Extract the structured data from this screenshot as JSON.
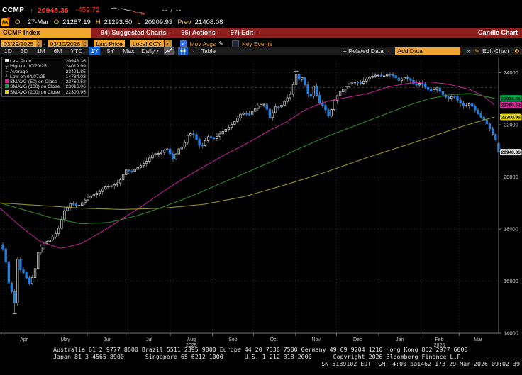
{
  "quote": {
    "ticker": "CCMP",
    "tick_arrow": "↑",
    "last": "20948.36",
    "change": "-459.72",
    "range_placeholder": "--  /  --",
    "on_label": "On",
    "date": "27-Mar",
    "open_label": "O",
    "open": "21287.19",
    "high_label": "H",
    "high": "21293.50",
    "low_label": "L",
    "low": "20909.93",
    "prev_label": "Prev",
    "prev": "21408.08"
  },
  "menubar": {
    "security": "CCMP Index",
    "items": [
      "94) Suggested Charts",
      "96) Actions",
      "97) Edit"
    ],
    "separator": "·",
    "right_label": "Candle Chart"
  },
  "controls": {
    "date_from": "03/29/2025",
    "date_to": "03/30/2026",
    "price_type": "Last Price",
    "currency": "Local CCY",
    "dropdown_caret": "▾",
    "mov_avgs_label": "Mov Avgs",
    "key_events_label": "Key Events",
    "pencil_icon": "✎"
  },
  "toolbar": {
    "periods": [
      "1D",
      "3D",
      "1M",
      "6M",
      "YTD",
      "1Y",
      "5Y",
      "Max"
    ],
    "selected_period": "1Y",
    "frequency": "Daily",
    "caret": "▼",
    "table_label": "Table",
    "related_data": "+ Related Data",
    "dot": "·",
    "add_data_placeholder": "Add Data",
    "collapse": "«",
    "edit_chart": "Edit Chart",
    "gear": "⚙",
    "pencil": "✎"
  },
  "legend": {
    "rows": [
      {
        "marker": "square",
        "color": "#e8e8e8",
        "label": "Last Price",
        "value": "20948.36"
      },
      {
        "marker": "┬",
        "color": "#bbbbbb",
        "label": "High on 10/29/25",
        "value": "24019.99"
      },
      {
        "marker": "╌",
        "color": "#bbbbbb",
        "label": "Average",
        "value": "23421.85"
      },
      {
        "marker": "┴",
        "color": "#bbbbbb",
        "label": "Low on 04/07/25",
        "value": "14784.03"
      },
      {
        "marker": "square",
        "color": "#e0219e",
        "label": "SMAVG (50)  on Close",
        "value": "22760.52"
      },
      {
        "marker": "square",
        "color": "#00a64f",
        "label": "SMAVG (100)  on Close",
        "value": "23016.06"
      },
      {
        "marker": "square",
        "color": "#e3d400",
        "label": "SMAVG (200)  on Close",
        "value": "22300.95"
      }
    ]
  },
  "chart_data": {
    "type": "candlestick",
    "title": "CCMP Index 1Y daily candle chart",
    "ylim": [
      14000,
      24400
    ],
    "yticks": [
      14000,
      16000,
      18000,
      20000,
      22000,
      24000
    ],
    "x_months": [
      "Apr",
      "May",
      "Jun",
      "Jul",
      "Aug",
      "Sep",
      "Oct",
      "Nov",
      "Dec",
      "Jan",
      "Feb",
      "Mar"
    ],
    "month_start_days": [
      3,
      33,
      64,
      94,
      125,
      156,
      186,
      217,
      247,
      278,
      309,
      337
    ],
    "month_mid_days": [
      17.5,
      48,
      79,
      109.5,
      140.5,
      171,
      201,
      232,
      262.5,
      293.5,
      322.5,
      351
    ],
    "year_labels": [
      {
        "text": "2025",
        "month_index": 4
      },
      {
        "text": "2026",
        "month_index": 10
      }
    ],
    "total_days": 366,
    "last_day": 363,
    "candle_count": 170,
    "close_anchors": [
      [
        0,
        17240
      ],
      [
        3,
        16550
      ],
      [
        5,
        15590
      ],
      [
        7,
        15600
      ],
      [
        9,
        15050
      ],
      [
        11,
        17100
      ],
      [
        13,
        16390
      ],
      [
        16,
        16290
      ],
      [
        19,
        15870
      ],
      [
        23,
        16300
      ],
      [
        26,
        17170
      ],
      [
        30,
        17450
      ],
      [
        35,
        17600
      ],
      [
        40,
        17900
      ],
      [
        45,
        18700
      ],
      [
        50,
        19010
      ],
      [
        55,
        18870
      ],
      [
        60,
        19110
      ],
      [
        64,
        19250
      ],
      [
        70,
        19400
      ],
      [
        75,
        19620
      ],
      [
        80,
        19660
      ],
      [
        85,
        19800
      ],
      [
        90,
        20270
      ],
      [
        94,
        20200
      ],
      [
        100,
        20400
      ],
      [
        105,
        20580
      ],
      [
        110,
        20880
      ],
      [
        115,
        20900
      ],
      [
        120,
        21100
      ],
      [
        125,
        20650
      ],
      [
        128,
        21050
      ],
      [
        132,
        21170
      ],
      [
        136,
        21680
      ],
      [
        140,
        21620
      ],
      [
        145,
        21100
      ],
      [
        150,
        21550
      ],
      [
        155,
        21460
      ],
      [
        160,
        21700
      ],
      [
        165,
        21890
      ],
      [
        170,
        22140
      ],
      [
        175,
        22470
      ],
      [
        180,
        22380
      ],
      [
        184,
        22590
      ],
      [
        188,
        22780
      ],
      [
        192,
        22790
      ],
      [
        196,
        22200
      ],
      [
        199,
        22690
      ],
      [
        203,
        22680
      ],
      [
        207,
        22950
      ],
      [
        211,
        23200
      ],
      [
        214,
        23830
      ],
      [
        215,
        23958
      ],
      [
        217,
        23730
      ],
      [
        220,
        23840
      ],
      [
        222,
        23350
      ],
      [
        225,
        23000
      ],
      [
        228,
        23530
      ],
      [
        231,
        22870
      ],
      [
        235,
        22710
      ],
      [
        239,
        22270
      ],
      [
        242,
        22870
      ],
      [
        246,
        23210
      ],
      [
        250,
        23410
      ],
      [
        254,
        23580
      ],
      [
        258,
        23650
      ],
      [
        262,
        23590
      ],
      [
        266,
        23750
      ],
      [
        270,
        23860
      ],
      [
        274,
        23920
      ],
      [
        278,
        23850
      ],
      [
        282,
        23950
      ],
      [
        286,
        23880
      ],
      [
        290,
        23700
      ],
      [
        294,
        23820
      ],
      [
        298,
        23740
      ],
      [
        302,
        23500
      ],
      [
        306,
        23620
      ],
      [
        310,
        23400
      ],
      [
        314,
        23280
      ],
      [
        318,
        23420
      ],
      [
        322,
        23150
      ],
      [
        326,
        23000
      ],
      [
        330,
        23120
      ],
      [
        334,
        22880
      ],
      [
        338,
        22700
      ],
      [
        342,
        22820
      ],
      [
        346,
        22550
      ],
      [
        350,
        22300
      ],
      [
        353,
        22150
      ],
      [
        356,
        21900
      ],
      [
        359,
        21600
      ],
      [
        361,
        21408
      ],
      [
        362,
        21408
      ],
      [
        363,
        20948.36
      ]
    ],
    "special_low": {
      "day": 9,
      "value": 14784.03
    },
    "special_high": {
      "day": 215,
      "value": 24019.99
    },
    "last_candle": {
      "open": 21287.19,
      "high": 21293.5,
      "low": 20909.93,
      "close": 20948.36
    },
    "average_line": {
      "value": 23421.85,
      "color": "#8a8a8a"
    },
    "mov_avgs": [
      {
        "name": "SMAVG (50) on Close",
        "color": "#c42296",
        "anchors": [
          [
            0,
            18800
          ],
          [
            15,
            18100
          ],
          [
            30,
            17500
          ],
          [
            45,
            17250
          ],
          [
            60,
            17450
          ],
          [
            75,
            17900
          ],
          [
            90,
            18400
          ],
          [
            105,
            18900
          ],
          [
            120,
            19450
          ],
          [
            135,
            19950
          ],
          [
            150,
            20400
          ],
          [
            165,
            20850
          ],
          [
            180,
            21250
          ],
          [
            195,
            21700
          ],
          [
            210,
            22100
          ],
          [
            225,
            22600
          ],
          [
            240,
            22900
          ],
          [
            255,
            23050
          ],
          [
            270,
            23200
          ],
          [
            285,
            23450
          ],
          [
            300,
            23600
          ],
          [
            315,
            23650
          ],
          [
            330,
            23550
          ],
          [
            345,
            23350
          ],
          [
            355,
            23100
          ],
          [
            363,
            22760.52
          ]
        ]
      },
      {
        "name": "SMAVG (100) on Close",
        "color": "#2e8b2e",
        "anchors": [
          [
            0,
            19000
          ],
          [
            20,
            18700
          ],
          [
            40,
            18400
          ],
          [
            60,
            18200
          ],
          [
            80,
            18250
          ],
          [
            100,
            18500
          ],
          [
            120,
            18850
          ],
          [
            140,
            19250
          ],
          [
            160,
            19700
          ],
          [
            180,
            20150
          ],
          [
            200,
            20600
          ],
          [
            220,
            21100
          ],
          [
            240,
            21550
          ],
          [
            260,
            21950
          ],
          [
            280,
            22350
          ],
          [
            300,
            22750
          ],
          [
            315,
            23000
          ],
          [
            330,
            23150
          ],
          [
            345,
            23200
          ],
          [
            363,
            23016.06
          ]
        ]
      },
      {
        "name": "SMAVG (200) on Close",
        "color": "#99992b",
        "anchors": [
          [
            0,
            19000
          ],
          [
            30,
            18900
          ],
          [
            60,
            18800
          ],
          [
            90,
            18750
          ],
          [
            120,
            18800
          ],
          [
            150,
            18950
          ],
          [
            180,
            19250
          ],
          [
            210,
            19700
          ],
          [
            240,
            20200
          ],
          [
            270,
            20750
          ],
          [
            300,
            21250
          ],
          [
            320,
            21600
          ],
          [
            340,
            21950
          ],
          [
            363,
            22300.95
          ]
        ]
      }
    ],
    "axis_chips": [
      {
        "value": 23016.06,
        "text": "23016.06",
        "bg": "#00a64f",
        "fg": "#000000"
      },
      {
        "value": 22760.52,
        "text": "22760.52",
        "bg": "#e0219e",
        "fg": "#000000"
      },
      {
        "value": 22300.95,
        "text": "22300.95",
        "bg": "#e3d400",
        "fg": "#000000"
      },
      {
        "value": 20948.36,
        "text": "20948.36",
        "bg": "#e8e8e8",
        "fg": "#000000"
      }
    ],
    "colors": {
      "up_stroke": "#c9c9c9",
      "down_fill": "#1f7fe8",
      "wick": "#9a9a9a",
      "grid": "#2e2e2e",
      "axis": "#777777",
      "tick_label": "#d5d5d5",
      "month_label": "#c9c9c9"
    }
  },
  "footer": {
    "line1": "Australia 61 2 9777 8600 Brazil 5511 2395 9000 Europe 44 20 7330 7500 Germany 49 69 9204 1210 Hong Kong 852 2977 6000",
    "line2": "Japan 81 3 4565 8900      Singapore 65 6212 1000      U.S. 1 212 318 2000      Copyright 2026 Bloomberg Finance L.P.",
    "line3": "SN 5189102 EDT  GMT-4:00 ba1462-173 29-Mar-2026 09:02:39"
  }
}
